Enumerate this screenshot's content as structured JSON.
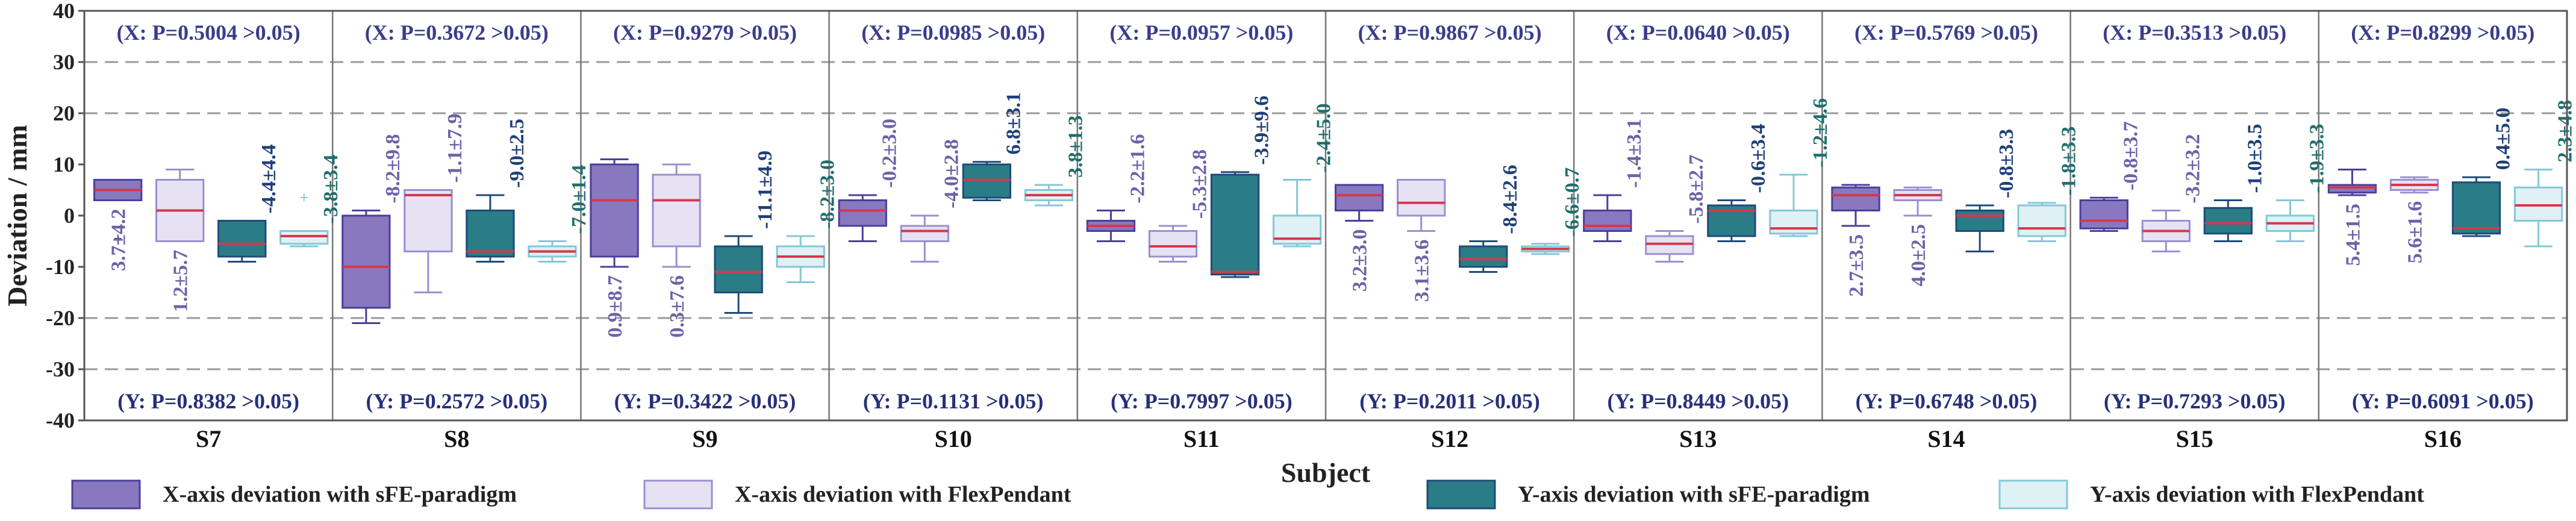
{
  "colors": {
    "x_sfe_fill": "#8878c0",
    "x_sfe_edge": "#4b3e9a",
    "x_flex_fill": "#e6e2f4",
    "x_flex_edge": "#9a8fcf",
    "y_sfe_fill": "#2a7d86",
    "y_sfe_edge": "#1f4a7a",
    "y_flex_fill": "#dff1f5",
    "y_flex_edge": "#84c7d9",
    "median": "#d6374a",
    "p_label_x": "#3a3d8c",
    "p_label_y": "#27307a",
    "x_label_text": "#6b63a8",
    "y_label_text_sfe": "#1f3f78",
    "y_label_text_flex": "#1f6e6e"
  },
  "legend": [
    {
      "key": "x_sfe",
      "label": "X-axis deviation with sFE-paradigm"
    },
    {
      "key": "x_flex",
      "label": "X-axis deviation with FlexPendant"
    },
    {
      "key": "y_sfe",
      "label": "Y-axis deviation with sFE-paradigm"
    },
    {
      "key": "y_flex",
      "label": "Y-axis deviation with FlexPendant"
    }
  ],
  "chart_data": {
    "type": "box",
    "xlabel": "Subject",
    "ylabel": "Deviation / mm",
    "ylim": [
      -40,
      40
    ],
    "yticks": [
      40,
      30,
      20,
      10,
      0,
      -10,
      -20,
      -30,
      -40
    ],
    "grid": "dashed horizontal lines at -30, -20, 20, 30",
    "categories": [
      "S7",
      "S8",
      "S9",
      "S10",
      "S11",
      "S12",
      "S13",
      "S14",
      "S15",
      "S16"
    ],
    "series_order": [
      "x_sfe",
      "x_flex",
      "y_sfe",
      "y_flex"
    ],
    "subjects": [
      {
        "name": "S7",
        "p_x": "(X: P=0.5004 >0.05)",
        "p_y": "(Y: P=0.8382 >0.05)",
        "boxes": {
          "x_sfe": {
            "whislo": 3,
            "q1": 3,
            "med": 5,
            "q3": 7,
            "whishi": 7,
            "outliers": [
              -4.5
            ],
            "label": "3.7±4.2"
          },
          "x_flex": {
            "whislo": -5,
            "q1": -5,
            "med": 1,
            "q3": 7,
            "whishi": 9,
            "outliers": [],
            "label": "1.2±5.7"
          },
          "y_sfe": {
            "whislo": -9,
            "q1": -8,
            "med": -5.5,
            "q3": -1,
            "whishi": -1,
            "outliers": [],
            "label": "-4.4±4.4"
          },
          "y_flex": {
            "whislo": -6,
            "q1": -5.5,
            "med": -4,
            "q3": -3,
            "whishi": -3,
            "outliers": [
              3.5
            ],
            "label": "-3.8±3.4"
          }
        }
      },
      {
        "name": "S8",
        "p_x": "(X: P=0.3672 >0.05)",
        "p_y": "(Y: P=0.2572 >0.05)",
        "boxes": {
          "x_sfe": {
            "whislo": -21,
            "q1": -18,
            "med": -10,
            "q3": 0,
            "whishi": 1,
            "outliers": [],
            "label": "-8.2±9.8"
          },
          "x_flex": {
            "whislo": -15,
            "q1": -7,
            "med": 4,
            "q3": 5,
            "whishi": 5,
            "outliers": [],
            "label": "-1.1±7.9"
          },
          "y_sfe": {
            "whislo": -9,
            "q1": -8,
            "med": -7,
            "q3": 1,
            "whishi": 4,
            "outliers": [],
            "label": "-9.0±2.5"
          },
          "y_flex": {
            "whislo": -9,
            "q1": -8,
            "med": -7,
            "q3": -6,
            "whishi": -5,
            "outliers": [],
            "label": "-7.0±1.4"
          }
        }
      },
      {
        "name": "S9",
        "p_x": "(X: P=0.9279 >0.05)",
        "p_y": "(Y: P=0.3422 >0.05)",
        "boxes": {
          "x_sfe": {
            "whislo": -10,
            "q1": -8,
            "med": 3,
            "q3": 10,
            "whishi": 11,
            "outliers": [],
            "label": "0.9±8.7"
          },
          "x_flex": {
            "whislo": -10,
            "q1": -6,
            "med": 3,
            "q3": 8,
            "whishi": 10,
            "outliers": [],
            "label": "0.3±7.6"
          },
          "y_sfe": {
            "whislo": -19,
            "q1": -15,
            "med": -11,
            "q3": -6,
            "whishi": -4,
            "outliers": [],
            "label": "-11.1±4.9"
          },
          "y_flex": {
            "whislo": -13,
            "q1": -10,
            "med": -8,
            "q3": -6,
            "whishi": -4,
            "outliers": [],
            "label": "-8.2±3.0"
          }
        }
      },
      {
        "name": "S10",
        "p_x": "(X: P=0.0985 >0.05)",
        "p_y": "(Y: P=0.1131 >0.05)",
        "boxes": {
          "x_sfe": {
            "whislo": -5,
            "q1": -2,
            "med": 1,
            "q3": 3,
            "whishi": 4,
            "outliers": [],
            "label": "-0.2±3.0"
          },
          "x_flex": {
            "whislo": -9,
            "q1": -5,
            "med": -3,
            "q3": -2,
            "whishi": 0,
            "outliers": [],
            "label": "-4.0±2.8"
          },
          "y_sfe": {
            "whislo": 3,
            "q1": 3.5,
            "med": 7,
            "q3": 10,
            "whishi": 10.5,
            "outliers": [],
            "label": "6.8±3.1"
          },
          "y_flex": {
            "whislo": 2,
            "q1": 3,
            "med": 4,
            "q3": 5,
            "whishi": 6,
            "outliers": [],
            "label": "3.8±1.3"
          }
        }
      },
      {
        "name": "S11",
        "p_x": "(X: P=0.0957 >0.05)",
        "p_y": "(Y: P=0.7997 >0.05)",
        "boxes": {
          "x_sfe": {
            "whislo": -5,
            "q1": -3,
            "med": -2,
            "q3": -1,
            "whishi": 1,
            "outliers": [],
            "label": "-2.2±1.6"
          },
          "x_flex": {
            "whislo": -9,
            "q1": -8,
            "med": -6,
            "q3": -3,
            "whishi": -2,
            "outliers": [],
            "label": "-5.3±2.8"
          },
          "y_sfe": {
            "whislo": -12,
            "q1": -11.5,
            "med": -11,
            "q3": 8,
            "whishi": 8.5,
            "outliers": [],
            "label": "-3.9±9.6"
          },
          "y_flex": {
            "whislo": -6,
            "q1": -5.5,
            "med": -4.5,
            "q3": 0,
            "whishi": 7,
            "outliers": [],
            "label": "-2.4±5.0"
          }
        }
      },
      {
        "name": "S12",
        "p_x": "(X: P=0.9867 >0.05)",
        "p_y": "(Y: P=0.2011 >0.05)",
        "boxes": {
          "x_sfe": {
            "whislo": -1,
            "q1": 1,
            "med": 4,
            "q3": 6,
            "whishi": 6,
            "outliers": [],
            "label": "3.2±3.0"
          },
          "x_flex": {
            "whislo": -3,
            "q1": 0,
            "med": 2.5,
            "q3": 7,
            "whishi": 7,
            "outliers": [],
            "label": "3.1±3.6"
          },
          "y_sfe": {
            "whislo": -11,
            "q1": -10,
            "med": -8.5,
            "q3": -6,
            "whishi": -5,
            "outliers": [],
            "label": "-8.4±2.6"
          },
          "y_flex": {
            "whislo": -7.5,
            "q1": -7,
            "med": -6.5,
            "q3": -6,
            "whishi": -5.5,
            "outliers": [],
            "label": "-6.6±0.7"
          }
        }
      },
      {
        "name": "S13",
        "p_x": "(X: P=0.0640 >0.05)",
        "p_y": "(Y: P=0.8449 >0.05)",
        "boxes": {
          "x_sfe": {
            "whislo": -5,
            "q1": -3,
            "med": -2,
            "q3": 1,
            "whishi": 4,
            "outliers": [],
            "label": "-1.4±3.1"
          },
          "x_flex": {
            "whislo": -9,
            "q1": -7.5,
            "med": -5.5,
            "q3": -4,
            "whishi": -3,
            "outliers": [],
            "label": "-5.8±2.7"
          },
          "y_sfe": {
            "whislo": -5,
            "q1": -4,
            "med": 1,
            "q3": 2,
            "whishi": 3,
            "outliers": [],
            "label": "-0.6±3.4"
          },
          "y_flex": {
            "whislo": -4,
            "q1": -3.5,
            "med": -2.5,
            "q3": 1,
            "whishi": 8,
            "outliers": [],
            "label": "-1.2±4.6"
          }
        }
      },
      {
        "name": "S14",
        "p_x": "(X: P=0.5769 >0.05)",
        "p_y": "(Y: P=0.6748 >0.05)",
        "boxes": {
          "x_sfe": {
            "whislo": -2,
            "q1": 1,
            "med": 4,
            "q3": 5.5,
            "whishi": 6,
            "outliers": [],
            "label": "2.7±3.5"
          },
          "x_flex": {
            "whislo": 0,
            "q1": 3,
            "med": 4,
            "q3": 5,
            "whishi": 5.5,
            "outliers": [],
            "label": "4.0±2.5"
          },
          "y_sfe": {
            "whislo": -7,
            "q1": -3,
            "med": 0,
            "q3": 1,
            "whishi": 2,
            "outliers": [],
            "label": "-0.8±3.3"
          },
          "y_flex": {
            "whislo": -5,
            "q1": -4,
            "med": -2.5,
            "q3": 2,
            "whishi": 2.5,
            "outliers": [],
            "label": "-1.8±3.3"
          }
        }
      },
      {
        "name": "S15",
        "p_x": "(X: P=0.3513 >0.05)",
        "p_y": "(Y: P=0.7293 >0.05)",
        "boxes": {
          "x_sfe": {
            "whislo": -3,
            "q1": -2.5,
            "med": -1,
            "q3": 3,
            "whishi": 3.5,
            "outliers": [],
            "label": "-0.8±3.7"
          },
          "x_flex": {
            "whislo": -7,
            "q1": -5,
            "med": -3,
            "q3": -1,
            "whishi": 1,
            "outliers": [],
            "label": "-3.2±3.2"
          },
          "y_sfe": {
            "whislo": -5,
            "q1": -3.5,
            "med": -1.5,
            "q3": 1.5,
            "whishi": 3,
            "outliers": [],
            "label": "-1.0±3.5"
          },
          "y_flex": {
            "whislo": -5,
            "q1": -3,
            "med": -1.5,
            "q3": 0,
            "whishi": 3,
            "outliers": [],
            "label": "-1.9±3.3"
          }
        }
      },
      {
        "name": "S16",
        "p_x": "(X: P=0.8299 >0.05)",
        "p_y": "(Y: P=0.6091 >0.05)",
        "boxes": {
          "x_sfe": {
            "whislo": 4,
            "q1": 4.5,
            "med": 5.5,
            "q3": 6,
            "whishi": 9,
            "outliers": [],
            "label": "5.4±1.5"
          },
          "x_flex": {
            "whislo": 4.5,
            "q1": 5,
            "med": 6,
            "q3": 7,
            "whishi": 7.5,
            "outliers": [],
            "label": "5.6±1.6"
          },
          "y_sfe": {
            "whislo": -4,
            "q1": -3.5,
            "med": -2.5,
            "q3": 6.5,
            "whishi": 7.5,
            "outliers": [],
            "label": "0.4±5.0"
          },
          "y_flex": {
            "whislo": -6,
            "q1": -1,
            "med": 2,
            "q3": 5.5,
            "whishi": 9,
            "outliers": [],
            "label": "2.3±4.8"
          }
        }
      }
    ]
  }
}
